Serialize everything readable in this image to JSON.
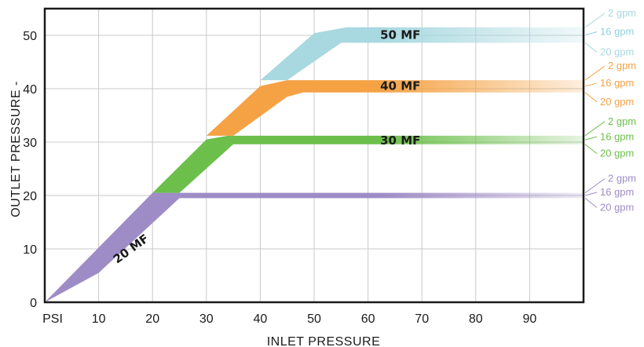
{
  "chart_data": {
    "type": "area",
    "xlabel": "INLET PRESSURE",
    "ylabel": "OUTLET PRESSURE -",
    "x_ticks": [
      "PSI",
      "10",
      "20",
      "30",
      "40",
      "50",
      "60",
      "70",
      "80",
      "90"
    ],
    "y_ticks": [
      "0",
      "10",
      "20",
      "30",
      "40",
      "50"
    ],
    "xlim": [
      0,
      100
    ],
    "ylim": [
      0,
      55
    ],
    "grid": true,
    "flow_labels": [
      "2 gpm",
      "16 gpm",
      "20 gpm"
    ],
    "series": [
      {
        "name": "20 MF",
        "color": "#9e8cc6",
        "upper": [
          [
            0,
            0
          ],
          [
            20,
            20.5
          ],
          [
            100,
            20.5
          ]
        ],
        "lower": [
          [
            0,
            0
          ],
          [
            10,
            5.5
          ],
          [
            25,
            19.5
          ],
          [
            100,
            19.5
          ]
        ],
        "flow_colors": [
          "#9e8cc6",
          "#9e8cc6",
          "#9e8cc6"
        ]
      },
      {
        "name": "30 MF",
        "color": "#6cbf4b",
        "upper": [
          [
            20,
            20.5
          ],
          [
            30,
            30.5
          ],
          [
            34,
            31.2
          ],
          [
            100,
            31.2
          ]
        ],
        "lower": [
          [
            25,
            20.5
          ],
          [
            35,
            29.6
          ],
          [
            100,
            29.6
          ]
        ],
        "flow_colors": [
          "#6cbf4b",
          "#6cbf4b",
          "#6cbf4b"
        ]
      },
      {
        "name": "40 MF",
        "color": "#f5a245",
        "upper": [
          [
            30,
            31.2
          ],
          [
            40,
            40.5
          ],
          [
            45,
            41.6
          ],
          [
            100,
            41.6
          ]
        ],
        "lower": [
          [
            35,
            31.2
          ],
          [
            45,
            38.5
          ],
          [
            48,
            39.3
          ],
          [
            100,
            39.3
          ]
        ],
        "flow_colors": [
          "#f5a245",
          "#f5a245",
          "#f5a245"
        ]
      },
      {
        "name": "50 MF",
        "color": "#a8d8e0",
        "upper": [
          [
            40,
            41.6
          ],
          [
            50,
            50.4
          ],
          [
            56,
            51.5
          ],
          [
            100,
            51.5
          ]
        ],
        "lower": [
          [
            45,
            41.6
          ],
          [
            55,
            48.6
          ],
          [
            100,
            48.6
          ]
        ],
        "flow_colors": [
          "#a8d8e0",
          "#8fd0de",
          "#a8d8e0"
        ]
      }
    ]
  }
}
